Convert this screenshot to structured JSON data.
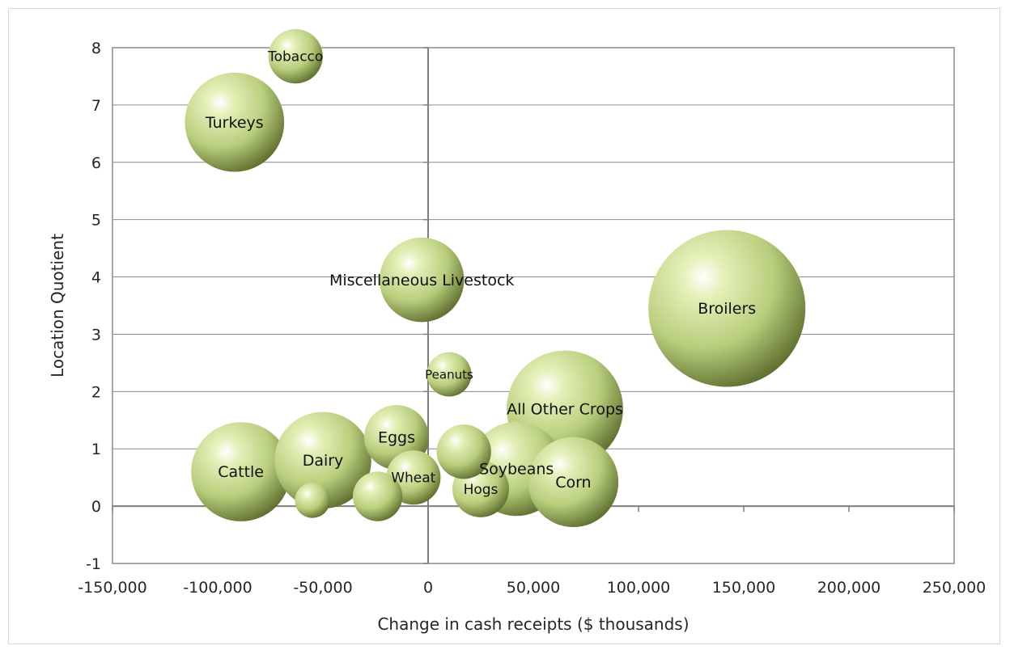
{
  "chart_data": {
    "type": "bubble",
    "xlabel": "Change in cash receipts ($ thousands)",
    "ylabel": "Location Quotient",
    "xlim": [
      -150000,
      250000
    ],
    "ylim": [
      -1,
      8
    ],
    "xticks": [
      -150000,
      -100000,
      -50000,
      0,
      50000,
      100000,
      150000,
      200000,
      250000
    ],
    "xtick_labels": [
      "-150,000",
      "-100,000",
      "-50,000",
      "0",
      "50,000",
      "100,000",
      "150,000",
      "200,000",
      "250,000"
    ],
    "yticks": [
      -1,
      0,
      1,
      2,
      3,
      4,
      5,
      6,
      7,
      8
    ],
    "ytick_labels": [
      "-1",
      "0",
      "1",
      "2",
      "3",
      "4",
      "5",
      "6",
      "7",
      "8"
    ],
    "grid": "horizontal",
    "bubble_color": "#c5d98a",
    "points": [
      {
        "label": "Broilers",
        "x": 142000,
        "y": 3.45,
        "size": 1.0
      },
      {
        "label": "All Other Crops",
        "x": 65000,
        "y": 1.7,
        "size": 0.55
      },
      {
        "label": "Turkeys",
        "x": -92000,
        "y": 6.7,
        "size": 0.4
      },
      {
        "label": "Cattle",
        "x": -89000,
        "y": 0.6,
        "size": 0.4
      },
      {
        "label": "Miscellaneous Livestock",
        "x": -3000,
        "y": 3.95,
        "size": 0.29
      },
      {
        "label": "Dairy",
        "x": -50000,
        "y": 0.8,
        "size": 0.38
      },
      {
        "label": "Soybeans",
        "x": 42000,
        "y": 0.65,
        "size": 0.36
      },
      {
        "label": "Corn",
        "x": 69000,
        "y": 0.42,
        "size": 0.33
      },
      {
        "label": "Eggs",
        "x": -15000,
        "y": 1.2,
        "size": 0.17
      },
      {
        "label": "Tobacco",
        "x": -63000,
        "y": 7.85,
        "size": 0.12
      },
      {
        "label": "Peanuts",
        "x": 10000,
        "y": 2.3,
        "size": 0.08
      },
      {
        "label": "Wheat",
        "x": -7000,
        "y": 0.5,
        "size": 0.12
      },
      {
        "label": "Hogs",
        "x": 25000,
        "y": 0.3,
        "size": 0.13
      },
      {
        "label": "",
        "x": 17000,
        "y": 0.95,
        "size": 0.12
      },
      {
        "label": "",
        "x": -24000,
        "y": 0.17,
        "size": 0.1
      },
      {
        "label": "",
        "x": -55000,
        "y": 0.1,
        "size": 0.05
      }
    ]
  }
}
